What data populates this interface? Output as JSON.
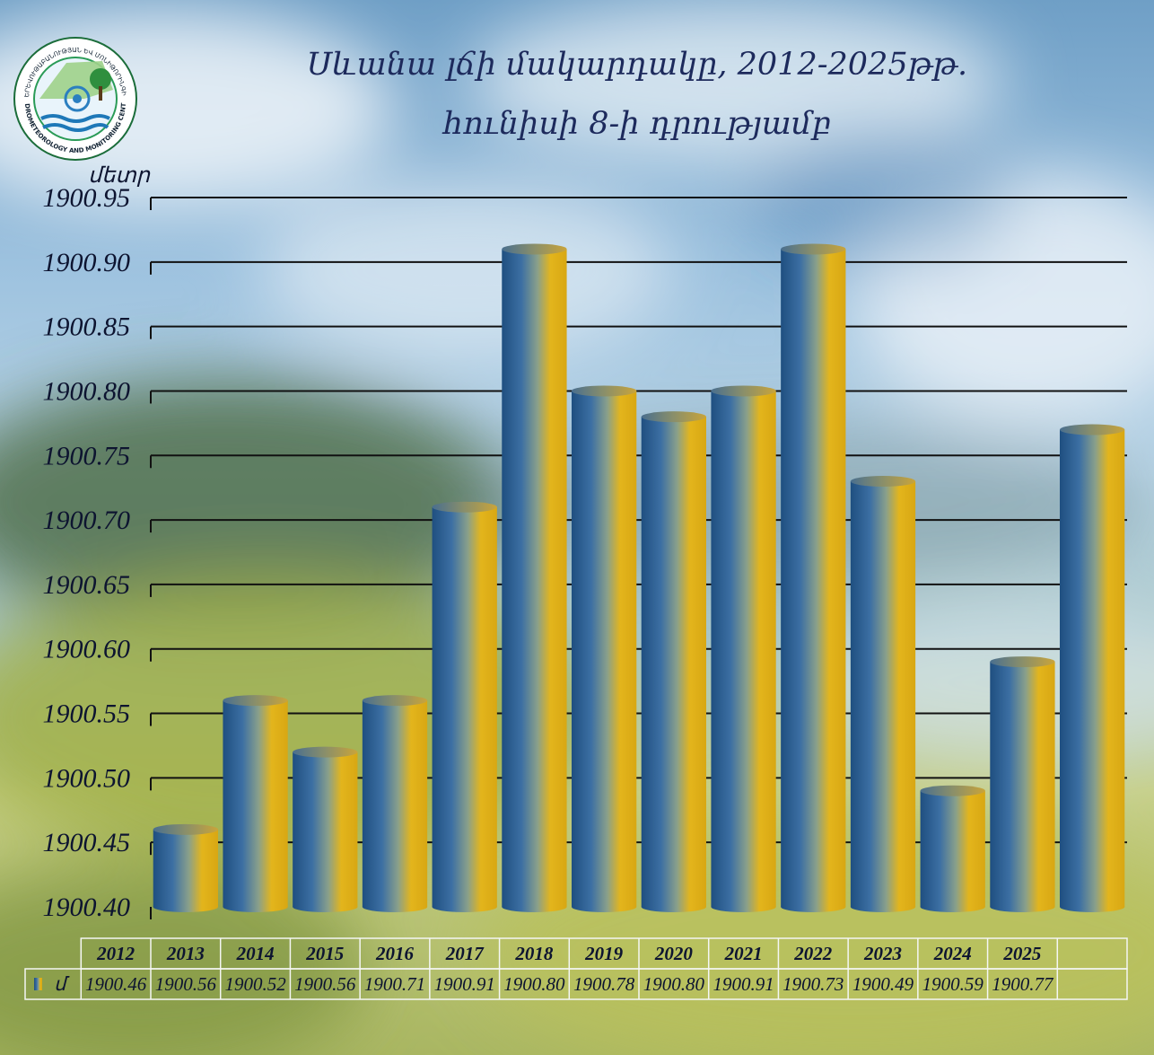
{
  "header": {
    "title_line1": "Սևանա լճի մակարդակը, 2012-2025թթ.",
    "title_line2": "հունիսի 8-ի դրությամբ"
  },
  "logo": {
    "icon": "hydrometeorology-center-logo",
    "text_top": "«ՀԻԴՐՈՕԴԵՐԵՎՈՒԹԱԲԱՆՈՒԹՅԱՆ ԵՎ ՄՈՆԻԹՈՐԻՆԳԻ ԿԵՆՏՐՈՆ»",
    "text_bottom": "HYDROMETEOROLOGY AND MONITORING CENTER"
  },
  "colors": {
    "bar_blue": "#2b5c8f",
    "bar_gold": "#e0b41a",
    "gridline": "#111111"
  },
  "chart_data": {
    "type": "bar",
    "ylabel": "մետր",
    "ylim": [
      1900.4,
      1900.95
    ],
    "ytick_step": 0.05,
    "yticks": [
      "1900.40",
      "1900.45",
      "1900.50",
      "1900.55",
      "1900.60",
      "1900.65",
      "1900.70",
      "1900.75",
      "1900.80",
      "1900.85",
      "1900.90",
      "1900.95"
    ],
    "grid": true,
    "legend_label": "մ",
    "categories": [
      "2012",
      "2013",
      "2014",
      "2015",
      "2016",
      "2017",
      "2018",
      "2019",
      "2020",
      "2021",
      "2022",
      "2023",
      "2024",
      "2025"
    ],
    "values": [
      1900.46,
      1900.56,
      1900.52,
      1900.56,
      1900.71,
      1900.91,
      1900.8,
      1900.78,
      1900.8,
      1900.91,
      1900.73,
      1900.49,
      1900.59,
      1900.77
    ],
    "value_labels": [
      "1900.46",
      "1900.56",
      "1900.52",
      "1900.56",
      "1900.71",
      "1900.91",
      "1900.80",
      "1900.78",
      "1900.80",
      "1900.91",
      "1900.73",
      "1900.49",
      "1900.59",
      "1900.77"
    ],
    "data_table": true
  }
}
